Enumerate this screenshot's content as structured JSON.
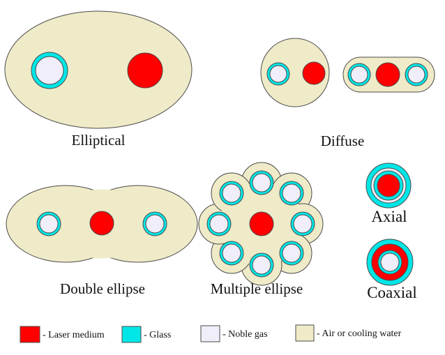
{
  "colors": {
    "laser_medium": "#ff0000",
    "glass": "#00e6e6",
    "noble_gas": "#f0eef8",
    "air_cooling_water": "#efebc8",
    "outline": "#4a4a4a",
    "text": "#111111"
  },
  "labels": {
    "elliptical": "Elliptical",
    "diffuse": "Diffuse",
    "double_ellipse": "Double ellipse",
    "multiple_ellipse": "Multiple  ellipse",
    "axial": "Axial",
    "coaxial": "Coaxial"
  },
  "legend": {
    "laser_medium": "- Laser medium",
    "glass": "- Glass",
    "noble_gas": "- Noble gas",
    "air_cooling_water": "- Air or cooling water"
  },
  "icons": {
    "swatch": "square-swatch-icon"
  }
}
